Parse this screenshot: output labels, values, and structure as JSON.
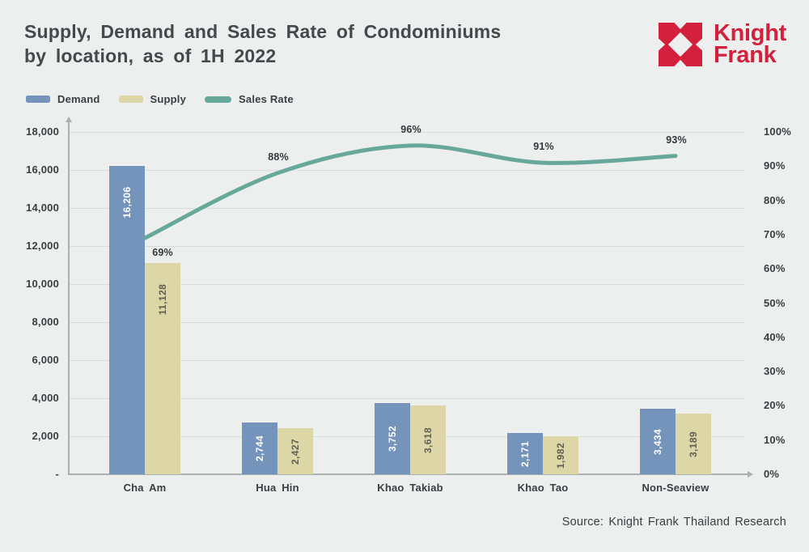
{
  "header": {
    "title_line1": "Supply, Demand and Sales Rate of Condominiums",
    "title_line2": "by location, as of 1H 2022",
    "brand": {
      "line1": "Knight",
      "line2": "Frank",
      "color": "#d3203c"
    }
  },
  "legend": [
    {
      "label": "Demand",
      "color": "#7494bc",
      "shape": "rect"
    },
    {
      "label": "Supply",
      "color": "#ddd7a7",
      "shape": "rect"
    },
    {
      "label": "Sales Rate",
      "color": "#68a89b",
      "shape": "pill"
    }
  ],
  "source": "Source: Knight Frank Thailand Research",
  "chart_data": {
    "type": "bar+line",
    "title": "Supply, Demand and Sales Rate of Condominiums by location, as of 1H 2022",
    "categories": [
      "Cha Am",
      "Hua Hin",
      "Khao Takiab",
      "Khao Tao",
      "Non-Seaview"
    ],
    "series": [
      {
        "name": "Demand",
        "type": "bar",
        "axis": "left",
        "color": "#7494bc",
        "value_label_color": "#ffffff",
        "values": [
          16206,
          2744,
          3752,
          2171,
          3434
        ],
        "value_labels": [
          "16,206",
          "2,744",
          "3,752",
          "2,171",
          "3,434"
        ]
      },
      {
        "name": "Supply",
        "type": "bar",
        "axis": "left",
        "color": "#ddd7a7",
        "value_label_color": "#5f6050",
        "values": [
          11128,
          2427,
          3618,
          1982,
          3189
        ],
        "value_labels": [
          "11,128",
          "2,427",
          "3,618",
          "1,982",
          "3,189"
        ]
      },
      {
        "name": "Sales Rate",
        "type": "line",
        "axis": "right",
        "color": "#68a89b",
        "values": [
          69,
          88,
          96,
          91,
          93
        ],
        "point_labels": [
          "69%",
          "88%",
          "96%",
          "91%",
          "93%"
        ],
        "label_placement": [
          "below",
          "above",
          "above",
          "above",
          "above"
        ]
      }
    ],
    "left_axis": {
      "min": 0,
      "max": 18000,
      "step": 2000,
      "tick_labels": [
        "18,000",
        "16,000",
        "14,000",
        "12,000",
        "10,000",
        "8,000",
        "6,000",
        "4,000",
        "2,000",
        "-"
      ]
    },
    "right_axis": {
      "min": 0,
      "max": 100,
      "step": 10,
      "suffix": "%",
      "tick_labels": [
        "100%",
        "90%",
        "80%",
        "70%",
        "60%",
        "50%",
        "40%",
        "30%",
        "20%",
        "10%",
        "0%"
      ]
    },
    "grid": true,
    "legend_position": "top-left",
    "background": "#ecefee"
  }
}
